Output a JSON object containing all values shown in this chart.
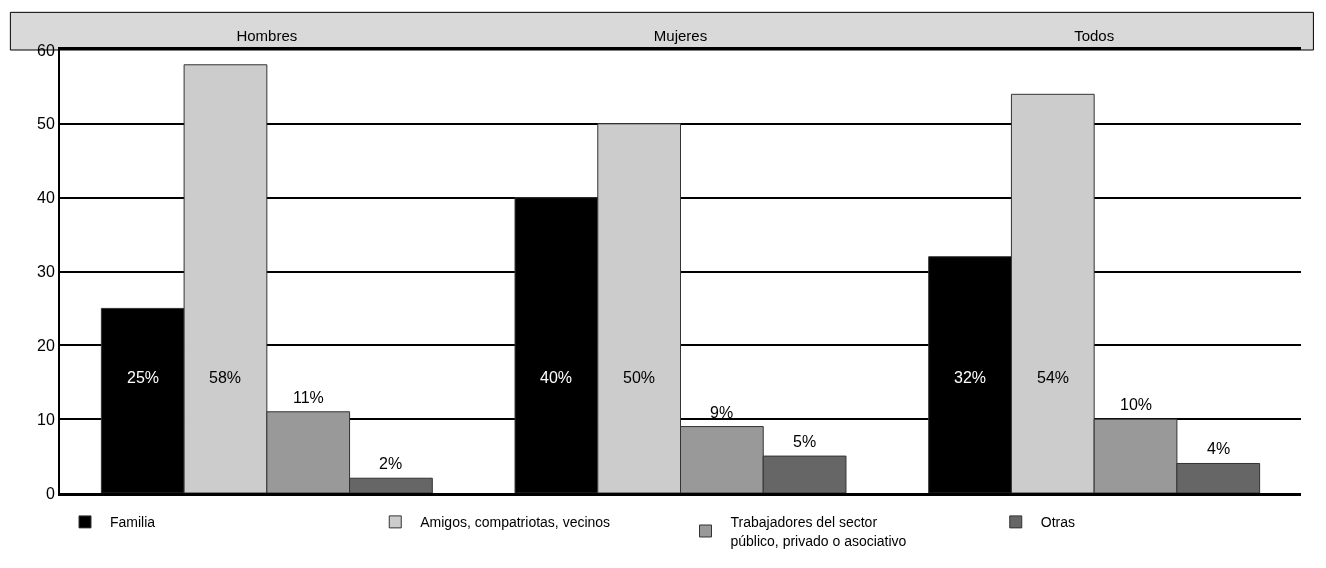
{
  "chart_data": {
    "type": "bar",
    "categories": [
      "Hombres",
      "Mujeres",
      "Todos"
    ],
    "series": [
      {
        "name": "Familia",
        "color": "#000000",
        "values": [
          25,
          40,
          32
        ],
        "value_labels": [
          "25%",
          "40%",
          "32%"
        ]
      },
      {
        "name": "Amigos, compatriotas, vecinos",
        "color": "#cccccc",
        "values": [
          58,
          50,
          54
        ],
        "value_labels": [
          "58%",
          "50%",
          "54%"
        ]
      },
      {
        "name": "Trabajadores del sector público, privado o asociativo",
        "color": "#999999",
        "values": [
          11,
          9,
          10
        ],
        "value_labels": [
          "11%",
          "9%",
          "10%"
        ]
      },
      {
        "name": "Otras",
        "color": "#666666",
        "values": [
          2,
          5,
          4
        ],
        "value_labels": [
          "2%",
          "5%",
          "4%"
        ]
      }
    ],
    "ylim": [
      0,
      60
    ],
    "yticks": [
      0,
      10,
      20,
      30,
      40,
      50,
      60
    ],
    "grid": "y",
    "legend": "bottom"
  }
}
